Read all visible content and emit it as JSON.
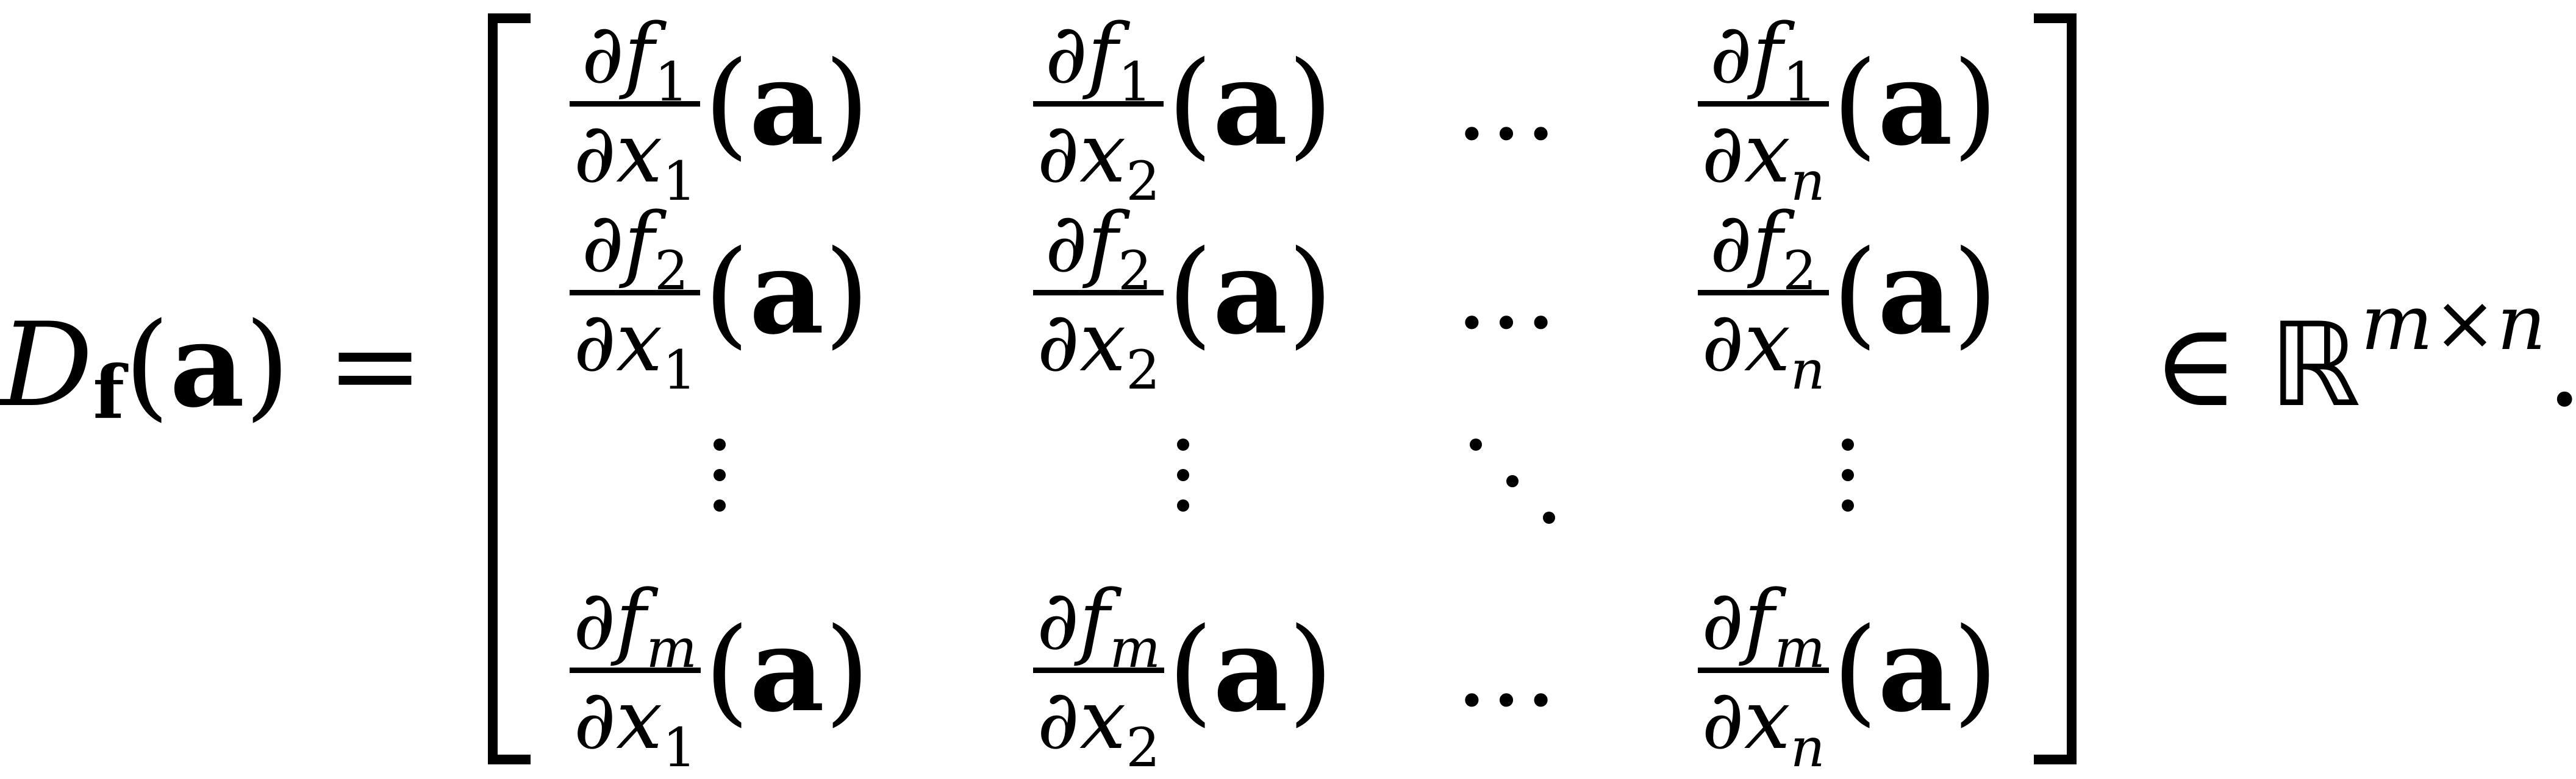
{
  "lhs": {
    "D": "D",
    "D_sub": "f",
    "open": "(",
    "arg": "a",
    "close": ")",
    "equals": "="
  },
  "partial": "∂",
  "func": "f",
  "var": "x",
  "arg_text": "(a)",
  "rows": [
    {
      "fsub": "1",
      "cells": [
        {
          "xsub": "1"
        },
        {
          "xsub": "2"
        },
        {
          "dots": "…"
        },
        {
          "xsub": "n"
        }
      ]
    },
    {
      "fsub": "2",
      "cells": [
        {
          "xsub": "1"
        },
        {
          "xsub": "2"
        },
        {
          "dots": "…"
        },
        {
          "xsub": "n"
        }
      ]
    },
    {
      "fsub": "m",
      "cells": [
        {
          "xsub": "1"
        },
        {
          "xsub": "2"
        },
        {
          "dots": "…"
        },
        {
          "xsub": "n"
        }
      ]
    }
  ],
  "rhs": {
    "in": "∈",
    "R": "ℝ",
    "exp_m": "m",
    "exp_times": "×",
    "exp_n": "n",
    "period": "."
  }
}
